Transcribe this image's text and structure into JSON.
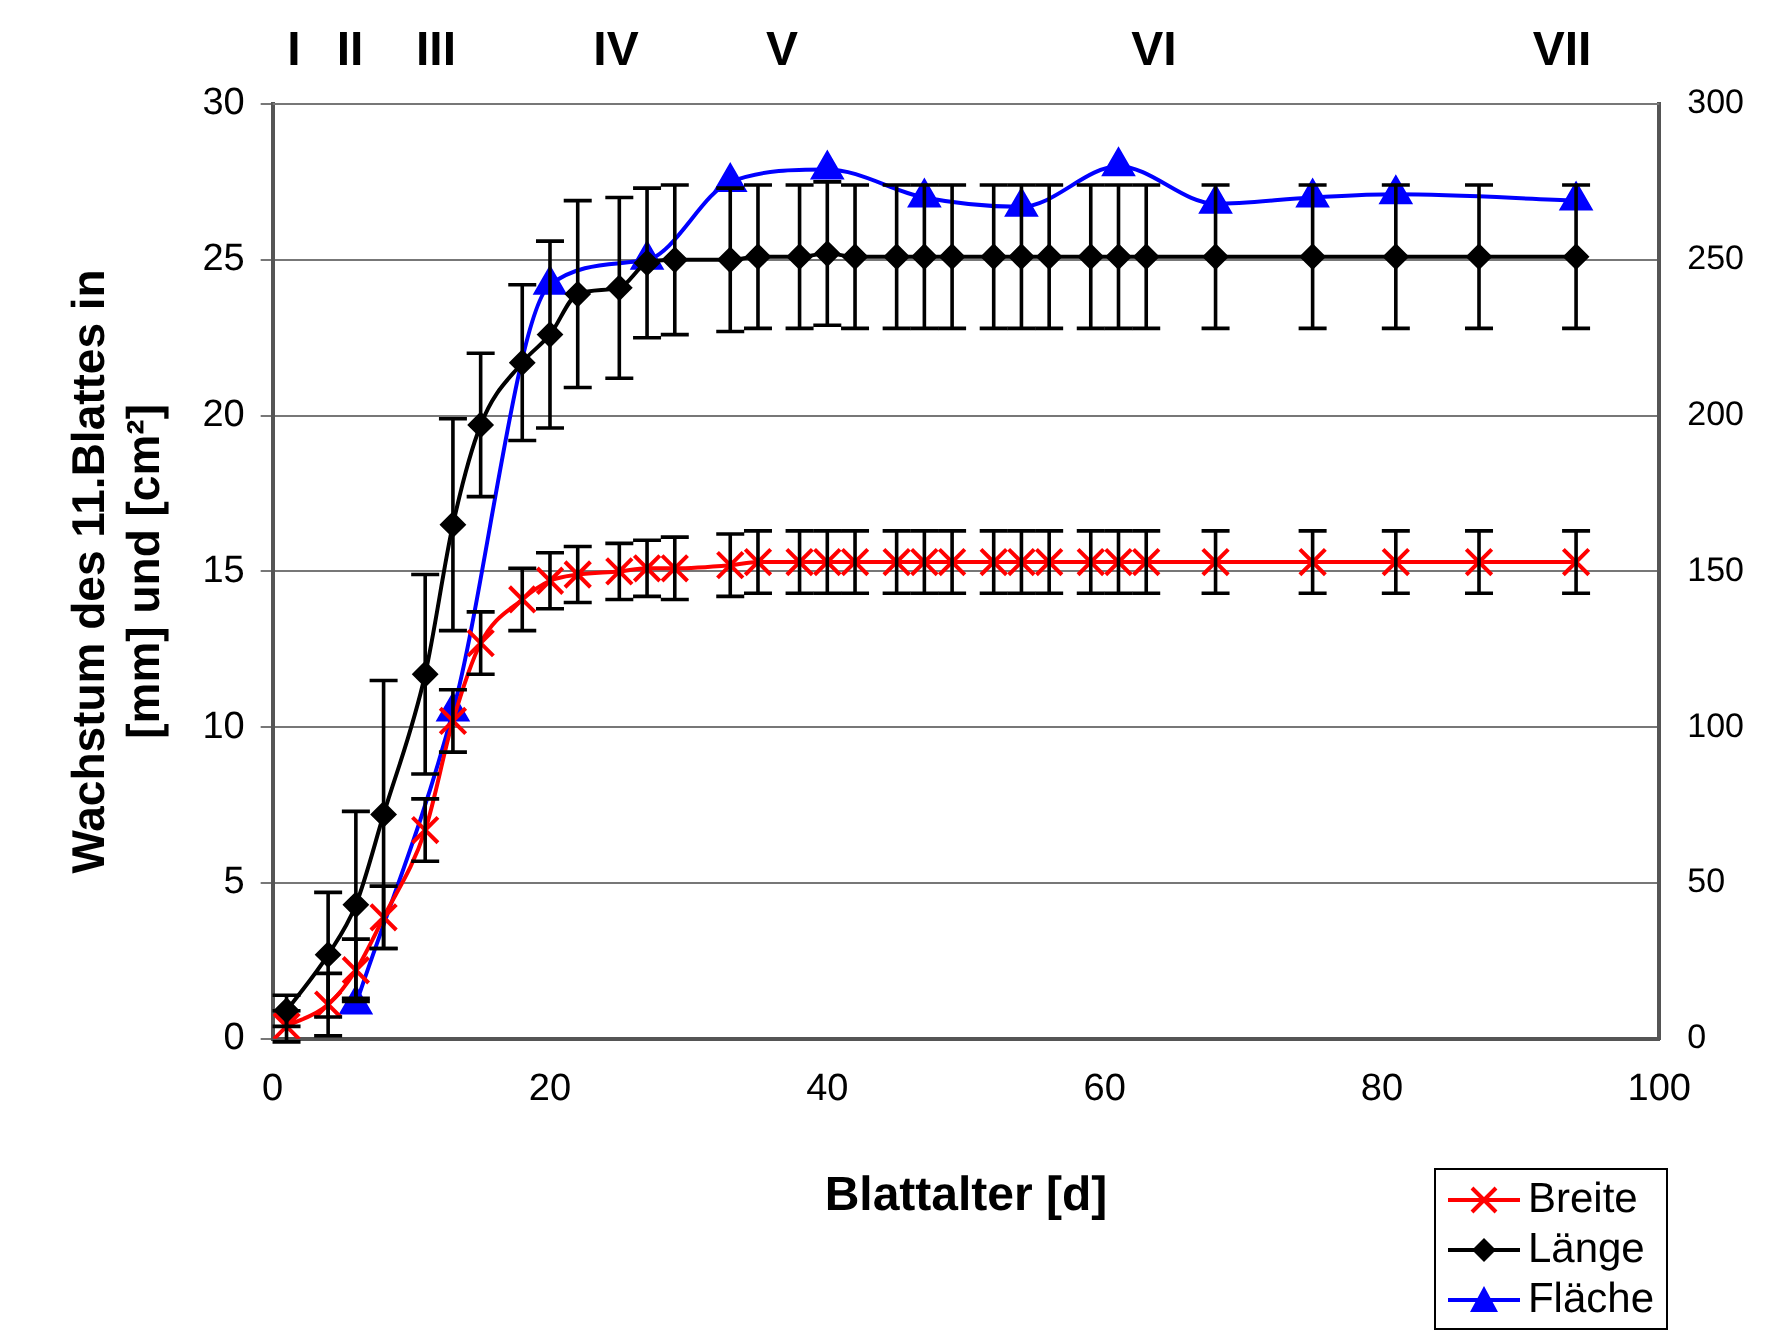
{
  "chart_data": {
    "type": "line",
    "xlabel": "Blattalter [d]",
    "ylabel": "Wachstum des 11.Blattes in\n[mm] und [cm²]",
    "x": [
      1,
      4,
      6,
      8,
      11,
      13,
      15,
      18,
      20,
      22,
      25,
      27,
      29,
      33,
      35,
      38,
      40,
      42,
      45,
      47,
      49,
      52,
      54,
      56,
      59,
      61,
      63,
      68,
      75,
      81,
      87,
      94
    ],
    "series": [
      {
        "name": "Breite",
        "color": "#ff0000",
        "marker": "cross",
        "values": [
          0.4,
          1.1,
          2.2,
          3.9,
          6.7,
          10.2,
          12.7,
          14.1,
          14.7,
          14.9,
          15.0,
          15.1,
          15.1,
          15.2,
          15.3,
          15.3,
          15.3,
          15.3,
          15.3,
          15.3,
          15.3,
          15.3,
          15.3,
          15.3,
          15.3,
          15.3,
          15.3,
          15.3,
          15.3,
          15.3,
          15.3,
          15.3
        ],
        "errors": [
          0.5,
          1.0,
          1.0,
          1.0,
          1.0,
          1.0,
          1.0,
          1.0,
          0.9,
          0.9,
          0.9,
          0.9,
          1.0,
          1.0,
          1.0,
          1.0,
          1.0,
          1.0,
          1.0,
          1.0,
          1.0,
          1.0,
          1.0,
          1.0,
          1.0,
          1.0,
          1.0,
          1.0,
          1.0,
          1.0,
          1.0,
          1.0
        ]
      },
      {
        "name": "Länge",
        "color": "#000000",
        "marker": "diamond",
        "values": [
          0.9,
          2.7,
          4.3,
          7.2,
          11.7,
          16.5,
          19.7,
          21.7,
          22.6,
          23.9,
          24.1,
          24.9,
          25.0,
          25.0,
          25.1,
          25.1,
          25.2,
          25.1,
          25.1,
          25.1,
          25.1,
          25.1,
          25.1,
          25.1,
          25.1,
          25.1,
          25.1,
          25.1,
          25.1,
          25.1,
          25.1,
          25.1
        ],
        "errors": [
          0.5,
          2.0,
          3.0,
          4.3,
          3.2,
          3.4,
          2.3,
          2.5,
          3.0,
          3.0,
          2.9,
          2.4,
          2.4,
          2.3,
          2.3,
          2.3,
          2.3,
          2.3,
          2.3,
          2.3,
          2.3,
          2.3,
          2.3,
          2.3,
          2.3,
          2.3,
          2.3,
          2.3,
          2.3,
          2.3,
          2.3,
          2.3
        ]
      },
      {
        "name": "Fläche",
        "color": "#0000ff",
        "marker": "triangle",
        "axis": "y2",
        "x": [
          6,
          13,
          20,
          27,
          33,
          40,
          47,
          54,
          61,
          68,
          75,
          81,
          94
        ],
        "values": [
          11,
          105,
          242,
          250,
          275,
          279,
          270,
          267,
          280,
          268,
          270,
          271,
          269
        ]
      }
    ],
    "xlim": [
      0,
      100
    ],
    "xticks": [
      0,
      20,
      40,
      60,
      80,
      100
    ],
    "ylim": [
      0,
      30
    ],
    "yticks": [
      0,
      5,
      10,
      15,
      20,
      25,
      30
    ],
    "y2lim": [
      0,
      300
    ],
    "y2ticks": [
      0,
      50,
      100,
      150,
      200,
      250,
      300
    ],
    "grid": "y",
    "legend": "bottom right",
    "annotations": [
      "I",
      "II",
      "III",
      "IV",
      "V",
      "VI",
      "VII"
    ]
  }
}
